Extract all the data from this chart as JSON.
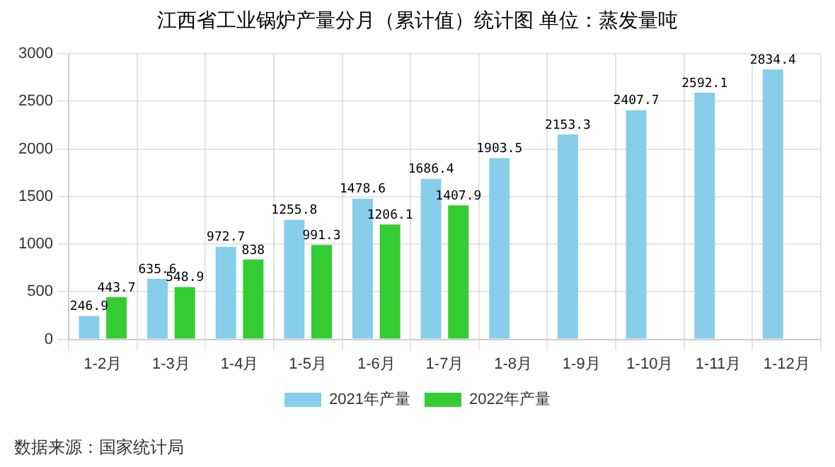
{
  "chart_data": {
    "type": "bar",
    "title": "江西省工业锅炉产量分月（累计值）统计图 单位：蒸发量吨",
    "categories": [
      "1-2月",
      "1-3月",
      "1-4月",
      "1-5月",
      "1-6月",
      "1-7月",
      "1-8月",
      "1-9月",
      "1-10月",
      "1-11月",
      "1-12月"
    ],
    "series": [
      {
        "name": "2021年产量",
        "color": "#87ceeb",
        "values": [
          246.9,
          635.6,
          972.7,
          1255.8,
          1478.6,
          1686.4,
          1903.5,
          2153.3,
          2407.7,
          2592.1,
          2834.4
        ]
      },
      {
        "name": "2022年产量",
        "color": "#33cc33",
        "values": [
          443.7,
          548.9,
          838,
          991.3,
          1206.1,
          1407.9,
          null,
          null,
          null,
          null,
          null
        ]
      }
    ],
    "ylim": [
      0,
      3000
    ],
    "yticks": [
      0,
      500,
      1000,
      1500,
      2000,
      2500,
      3000
    ],
    "grid": true,
    "legend": "bottom",
    "data_labels": true,
    "annotations": [
      "数据来源：国家统计局"
    ]
  }
}
